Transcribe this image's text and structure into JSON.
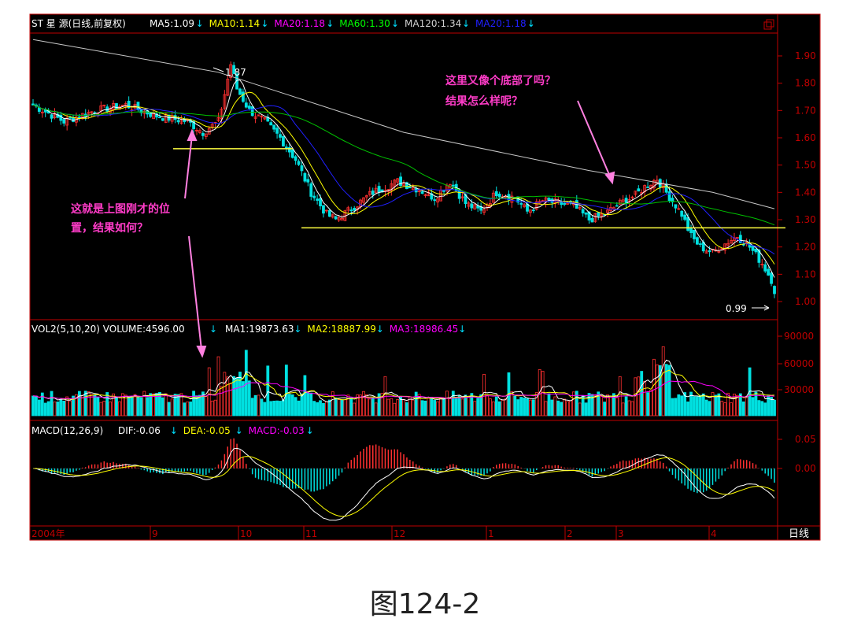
{
  "header": {
    "stock": "ST 星 源(日线,前复权)",
    "ma": [
      {
        "label": "MA5:1.09",
        "color": "#ffffff"
      },
      {
        "label": "MA10:1.14",
        "color": "#ffff00"
      },
      {
        "label": "MA20:1.18",
        "color": "#ff00ff"
      },
      {
        "label": "MA60:1.30",
        "color": "#00ff00"
      },
      {
        "label": "MA120:1.34",
        "color": "#d0d0d0"
      },
      {
        "label": "MA20:1.18",
        "color": "#2020ff"
      }
    ]
  },
  "volume_header": {
    "label": "VOL2(5,10,20) VOLUME:4596.00",
    "ma": [
      {
        "label": "MA1:19873.63",
        "color": "#ffffff"
      },
      {
        "label": "MA2:18887.99",
        "color": "#ffff00"
      },
      {
        "label": "MA3:18986.45",
        "color": "#ff00ff"
      }
    ]
  },
  "macd_header": {
    "label": "MACD(12,26,9)",
    "items": [
      {
        "label": "DIF:-0.06",
        "color": "#ffffff"
      },
      {
        "label": "DEA:-0.05",
        "color": "#ffff00"
      },
      {
        "label": "MACD:-0.03",
        "color": "#ff00ff"
      }
    ]
  },
  "price_axis": [
    "1.90",
    "1.80",
    "1.70",
    "1.60",
    "1.50",
    "1.40",
    "1.30",
    "1.20",
    "1.10",
    "1.00"
  ],
  "volume_axis": [
    "90000",
    "60000",
    "30000"
  ],
  "macd_axis": [
    "0.05",
    "0.00"
  ],
  "date_labels": [
    "2004年",
    "9",
    "10",
    "11",
    "12",
    "1",
    "2",
    "3",
    "4"
  ],
  "period": "日线",
  "high_marker": "1.87",
  "low_marker": "0.99",
  "annotations": {
    "left_line1": "这就是上图刚才的位",
    "left_line2": "置，结果如何？",
    "right_line1": "这里又像个底部了吗？",
    "right_line2": "结果怎么样呢？"
  },
  "caption": "图124-2",
  "colors": {
    "up": "#ff3030",
    "down": "#00e0e0",
    "background": "#000000",
    "axis": "#c00000",
    "annotation": "#ff3cc8"
  },
  "chart_data": {
    "type": "candlestick",
    "title": "ST 星 源(日线,前复权)",
    "price_range": [
      0.95,
      1.94
    ],
    "price_key_points": [
      {
        "date": "2004-08",
        "close": 1.7
      },
      {
        "date": "2004-09-peak",
        "high": 1.87
      },
      {
        "date": "2004-10",
        "close": 1.5
      },
      {
        "date": "2004-11",
        "close": 1.3
      },
      {
        "date": "2004-12",
        "close": 1.42
      },
      {
        "date": "2005-01",
        "close": 1.34
      },
      {
        "date": "2005-02",
        "close": 1.3
      },
      {
        "date": "2005-03",
        "close": 1.42
      },
      {
        "date": "2005-04",
        "close": 1.2
      },
      {
        "date": "2005-05-low",
        "low": 0.99
      }
    ],
    "support_lines": [
      1.56,
      1.27
    ],
    "moving_averages": {
      "MA5": 1.09,
      "MA10": 1.14,
      "MA20": 1.18,
      "MA60": 1.3,
      "MA120": 1.34
    },
    "volume": {
      "last": 4596.0,
      "MA1": 19873.63,
      "MA2": 18887.99,
      "MA3": 18986.45,
      "range": [
        0,
        100000
      ]
    },
    "macd": {
      "DIF": -0.06,
      "DEA": -0.05,
      "MACD": -0.03
    }
  }
}
